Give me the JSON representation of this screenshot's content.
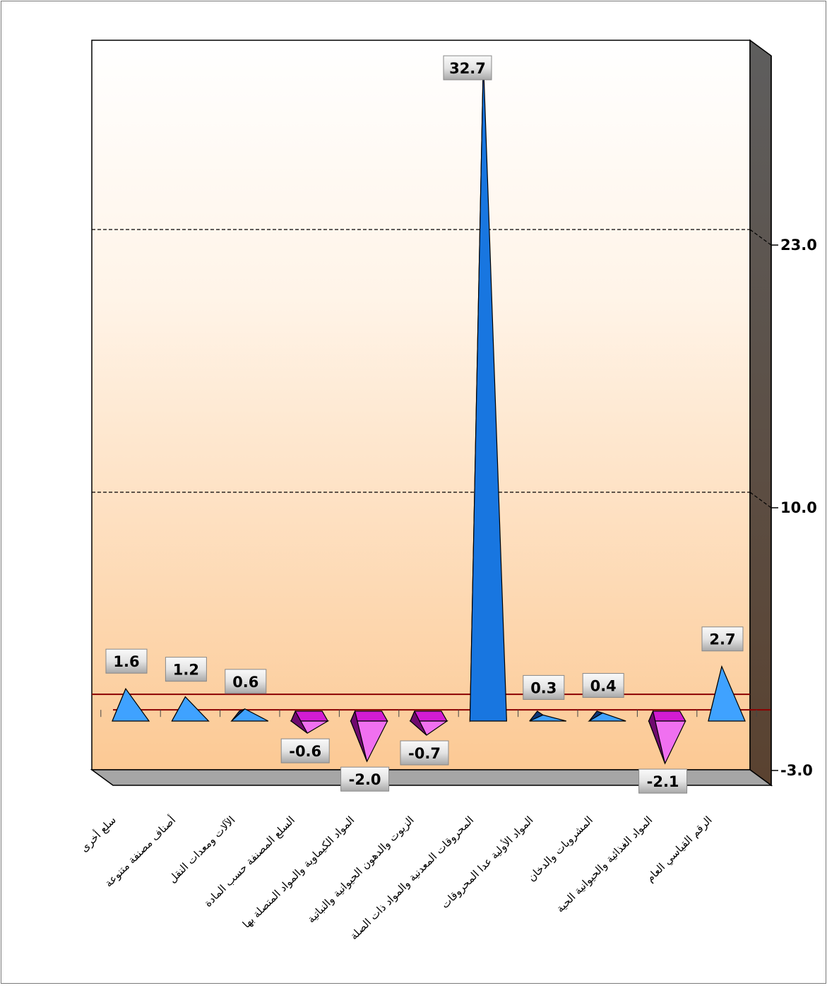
{
  "chart_data": {
    "type": "bar",
    "bar_shape": "pyramid",
    "title": "",
    "xlabel": "",
    "ylabel": "",
    "ylim": [
      -3.0,
      36.0
    ],
    "y_ticks": [
      23.0,
      10.0,
      -3.0
    ],
    "y_tick_labels": [
      "23.0",
      "10.0",
      "-3.0"
    ],
    "grid": "dashed horizontal",
    "legend": "none",
    "categories": [
      "سلع أخرى",
      "أصناف مصنفة متنوعة",
      "الآلات ومعدات النقل",
      "السلع المصنفة حسب المادة",
      "المواد الكيماوية والمواد المتصلة بها",
      "الزيوت والدهون الحيوانية والنباتية",
      "المحروقات المعدنية والمواد ذات الصلة",
      "المواد الأولية عدا المحروقات",
      "المشروبات والدخان",
      "المواد الغذائية والحيوانية الحية",
      "الرقم القياسي العام"
    ],
    "values": [
      1.6,
      1.2,
      0.6,
      -0.6,
      -2.0,
      -0.7,
      32.7,
      0.3,
      0.4,
      -2.1,
      2.7
    ],
    "value_labels": [
      "1.6",
      "1.2",
      "0.6",
      "-0.6",
      "-2.0",
      "-0.7",
      "32.7",
      "0.3",
      "0.4",
      "-2.1",
      "2.7"
    ],
    "colors": {
      "positive_light": "#3fa2ff",
      "positive_main": "#1876e0",
      "positive_dark": "#0d3778",
      "negative_light": "#f070f0",
      "negative_main": "#d21cd2",
      "negative_dark": "#6e0a6e",
      "zero_line": "#8b0000",
      "wall_top": "#ffffff",
      "wall_bottom": "#fcc994",
      "side_wall": "#5b4a3f",
      "floor": "#a6a6a6"
    }
  }
}
